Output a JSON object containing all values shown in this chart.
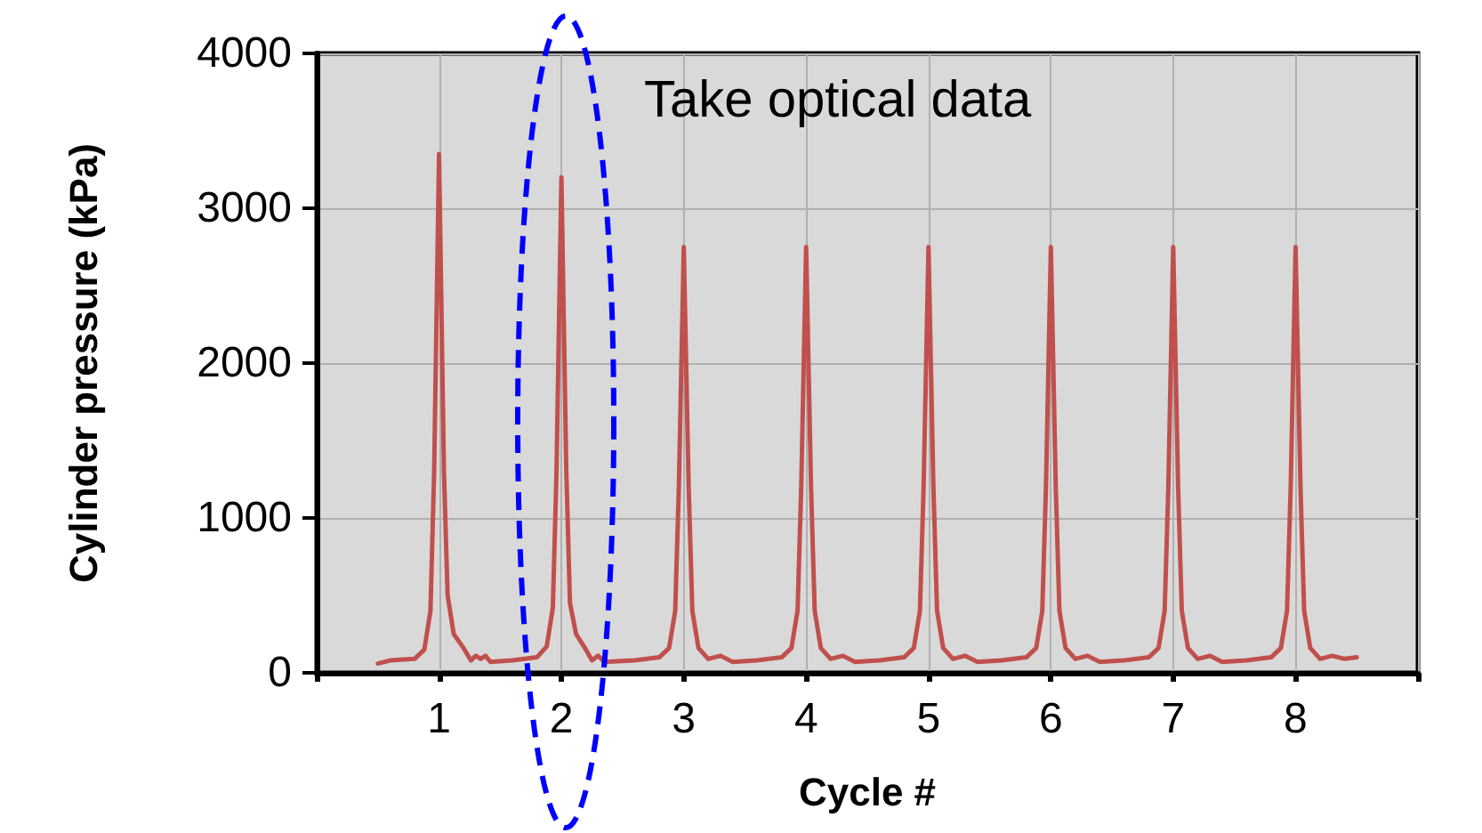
{
  "chart_data": {
    "type": "line",
    "xlabel": "Cycle #",
    "ylabel": "Cylinder pressure (kPa)",
    "annotations": [
      "Take optical data"
    ],
    "xlim": [
      0,
      9
    ],
    "xticks": [
      {
        "value": 0,
        "label": null
      },
      1,
      2,
      3,
      4,
      5,
      6,
      7,
      8,
      {
        "value": 9,
        "label": null
      }
    ],
    "ylim": [
      0,
      4000
    ],
    "yticks": [
      0,
      1000,
      2000,
      3000,
      4000
    ],
    "grid": true,
    "marker": "none",
    "line_style": "solid",
    "series": [
      {
        "color": "#c0504d",
        "x": [
          0.5,
          0.6,
          0.8,
          0.88,
          0.93,
          0.96,
          1.0,
          1.04,
          1.07,
          1.12,
          1.2,
          1.26,
          1.3,
          1.34,
          1.38,
          1.42,
          1.6,
          1.8,
          1.88,
          1.93,
          1.96,
          2.0,
          2.04,
          2.07,
          2.12,
          2.2,
          2.25,
          2.3,
          2.35,
          2.6,
          2.8,
          2.88,
          2.93,
          2.96,
          3.0,
          3.04,
          3.07,
          3.12,
          3.2,
          3.3,
          3.4,
          3.6,
          3.8,
          3.88,
          3.93,
          3.96,
          4.0,
          4.04,
          4.07,
          4.12,
          4.2,
          4.3,
          4.4,
          4.6,
          4.8,
          4.88,
          4.93,
          4.96,
          5.0,
          5.04,
          5.07,
          5.12,
          5.2,
          5.3,
          5.4,
          5.6,
          5.8,
          5.88,
          5.93,
          5.96,
          6.0,
          6.04,
          6.07,
          6.12,
          6.2,
          6.3,
          6.4,
          6.6,
          6.8,
          6.88,
          6.93,
          6.96,
          7.0,
          7.04,
          7.07,
          7.12,
          7.2,
          7.3,
          7.4,
          7.6,
          7.8,
          7.88,
          7.93,
          7.96,
          8.0,
          8.04,
          8.07,
          8.12,
          8.2,
          8.3,
          8.4,
          8.5
        ],
        "values": [
          60,
          80,
          90,
          150,
          400,
          1300,
          3350,
          1300,
          500,
          250,
          160,
          80,
          110,
          90,
          110,
          70,
          80,
          100,
          170,
          420,
          1300,
          3200,
          1300,
          450,
          250,
          150,
          80,
          110,
          70,
          80,
          100,
          160,
          400,
          1200,
          2750,
          1200,
          400,
          160,
          90,
          110,
          70,
          80,
          100,
          160,
          400,
          1200,
          2750,
          1200,
          400,
          160,
          90,
          110,
          70,
          80,
          100,
          160,
          400,
          1200,
          2750,
          1200,
          400,
          160,
          90,
          110,
          70,
          80,
          100,
          160,
          400,
          1200,
          2750,
          1200,
          400,
          160,
          90,
          110,
          70,
          80,
          100,
          160,
          400,
          1200,
          2750,
          1200,
          400,
          160,
          90,
          110,
          70,
          80,
          100,
          160,
          400,
          1200,
          2750,
          1200,
          400,
          160,
          90,
          110,
          90,
          100
        ]
      }
    ]
  }
}
